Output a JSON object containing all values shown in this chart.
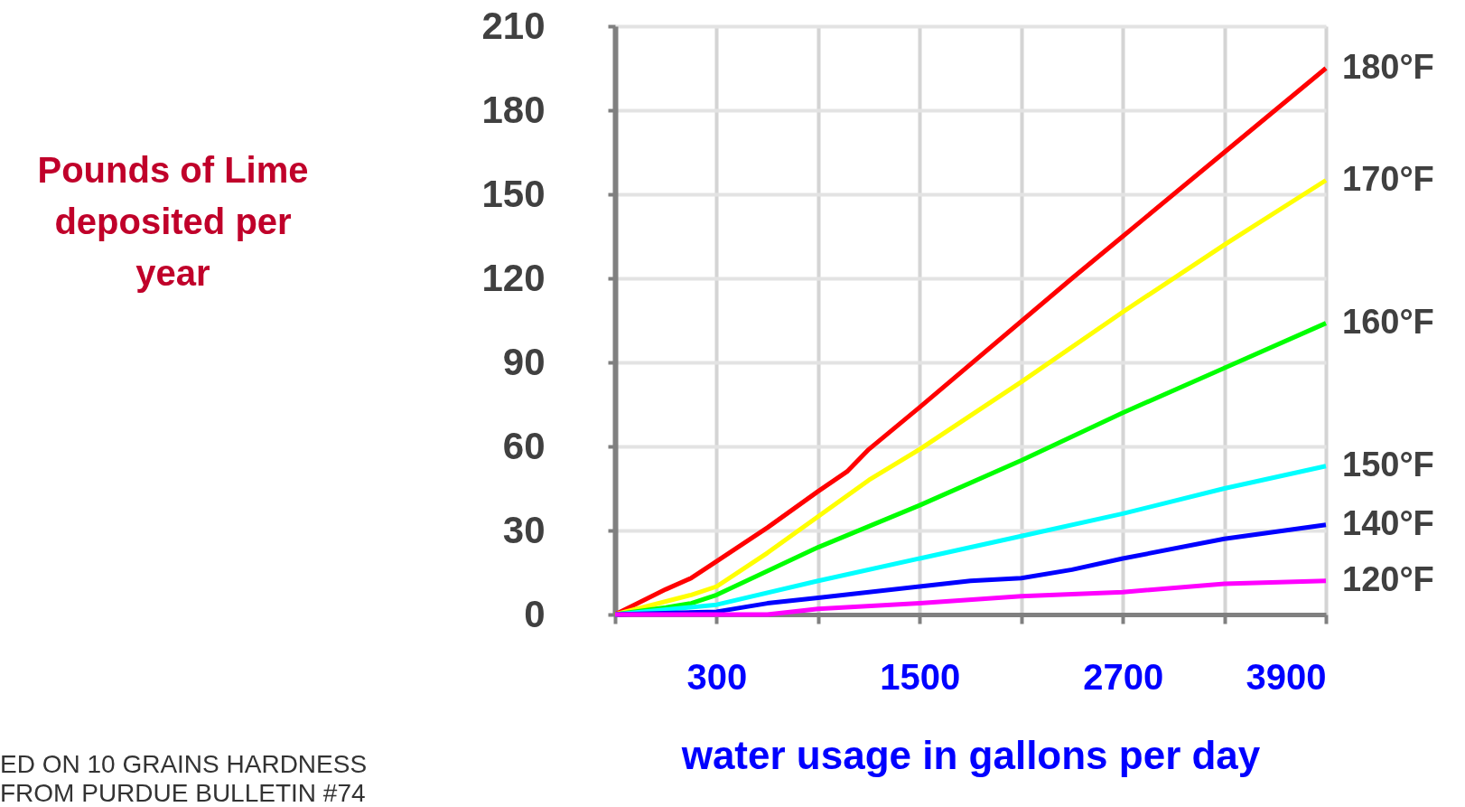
{
  "chart_data": {
    "type": "line",
    "ylabel": "Pounds of Lime deposited per year",
    "xlabel": "water usage in gallons per day",
    "annotations": [
      "ED ON 10 GRAINS HARDNESS",
      "FROM PURDUE BULLETIN #74"
    ],
    "xlim": [
      -300,
      3900
    ],
    "xticks": [
      {
        "value": -300,
        "label": null
      },
      300,
      {
        "value": 900,
        "label": null
      },
      1500,
      {
        "value": 2100,
        "label": null
      },
      2700,
      {
        "value": 3300,
        "label": null
      },
      3900
    ],
    "ylim": [
      0,
      210
    ],
    "yticks": [
      0,
      30,
      60,
      90,
      120,
      150,
      180,
      210
    ],
    "grid": true,
    "legend": false,
    "marker": "none",
    "line_style": "solid",
    "series": [
      {
        "name": "180°F",
        "color": "#ff0000",
        "x": [
          -300,
          0,
          150,
          300,
          600,
          900,
          1070,
          1200,
          1500,
          2400,
          2700,
          3300,
          3900
        ],
        "values": [
          0,
          9,
          13,
          19,
          31,
          44,
          51,
          59,
          74,
          120,
          135,
          165,
          195
        ]
      },
      {
        "name": "170°F",
        "color": "#ffff00",
        "x": [
          -300,
          150,
          300,
          600,
          900,
          1200,
          1500,
          2100,
          2700,
          3300,
          3900
        ],
        "values": [
          0,
          7,
          10,
          22,
          35,
          48,
          59,
          83,
          108,
          132,
          155
        ]
      },
      {
        "name": "160°F",
        "color": "#00ff00",
        "x": [
          -300,
          0,
          150,
          300,
          900,
          1500,
          2100,
          2700,
          3300,
          3900
        ],
        "values": [
          0,
          2.5,
          4,
          7,
          24,
          39,
          55,
          72,
          88,
          104
        ]
      },
      {
        "name": "150°F",
        "color": "#00ffff",
        "x": [
          -300,
          300,
          900,
          1500,
          2100,
          2700,
          3300,
          3900
        ],
        "values": [
          0,
          3.5,
          12,
          20,
          28,
          36,
          45,
          53
        ]
      },
      {
        "name": "140°F",
        "color": "#0000ff",
        "x": [
          -300,
          300,
          600,
          900,
          1500,
          1800,
          2100,
          2400,
          2700,
          3300,
          3900
        ],
        "values": [
          0,
          1,
          4,
          6,
          10,
          12,
          13,
          16,
          20,
          27,
          32
        ]
      },
      {
        "name": "120°F",
        "color": "#ff00ff",
        "x": [
          -300,
          600,
          900,
          1500,
          2100,
          2700,
          3300,
          3900
        ],
        "values": [
          0,
          0,
          2,
          4,
          6.5,
          8,
          11,
          12
        ]
      }
    ]
  }
}
